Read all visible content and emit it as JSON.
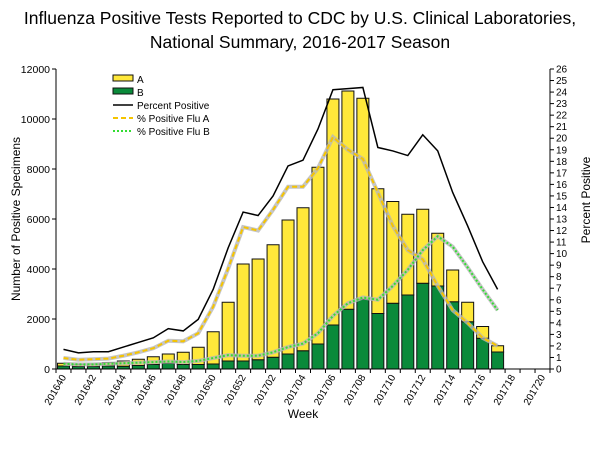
{
  "chart_data": {
    "type": "bar",
    "title_line1": "Influenza Positive Tests Reported to CDC by U.S. Clinical Laboratories,",
    "title_line2": "National Summary, 2016-2017 Season",
    "xlabel": "Week",
    "ylabel": "Number of Positive Specimens",
    "y2label": "Percent Positive",
    "ylim": [
      0,
      12000
    ],
    "y2lim": [
      0,
      26
    ],
    "yticks": [
      0,
      2000,
      4000,
      6000,
      8000,
      10000,
      12000
    ],
    "y2ticks": [
      0,
      1,
      2,
      3,
      4,
      5,
      6,
      7,
      8,
      9,
      10,
      11,
      12,
      13,
      14,
      15,
      16,
      17,
      18,
      19,
      20,
      21,
      22,
      23,
      24,
      25,
      26
    ],
    "grid": false,
    "legend_position": "top-left",
    "categories": [
      "201640",
      "201641",
      "201642",
      "201643",
      "201644",
      "201645",
      "201646",
      "201647",
      "201648",
      "201649",
      "201650",
      "201651",
      "201652",
      "201701",
      "201702",
      "201703",
      "201704",
      "201705",
      "201706",
      "201707",
      "201708",
      "201709",
      "201710",
      "201711",
      "201712",
      "201713",
      "201714",
      "201715",
      "201716",
      "201717",
      "201718",
      "201719",
      "201720"
    ],
    "tick_labels": [
      "201640",
      "201642",
      "201644",
      "201646",
      "201648",
      "201650",
      "201652",
      "201702",
      "201704",
      "201706",
      "201708",
      "201710",
      "201712",
      "201714",
      "201716",
      "201718",
      "201720"
    ],
    "bar_series": [
      {
        "name": "A",
        "stack": "top",
        "color": "#FFE83A",
        "values": [
          110,
          90,
          100,
          140,
          210,
          250,
          310,
          370,
          490,
          690,
          1290,
          2350,
          3880,
          4030,
          4500,
          5360,
          5720,
          7070,
          9040,
          8730,
          8040,
          4990,
          4070,
          3230,
          2960,
          2110,
          1270,
          780,
          470,
          250,
          null,
          null,
          null
        ]
      },
      {
        "name": "B",
        "stack": "bottom",
        "color": "#0A8A3A",
        "values": [
          120,
          100,
          100,
          120,
          110,
          140,
          180,
          230,
          180,
          180,
          200,
          320,
          320,
          370,
          470,
          600,
          730,
          1000,
          1760,
          2390,
          2790,
          2220,
          2630,
          2960,
          3430,
          3320,
          2690,
          1890,
          1230,
          680,
          null,
          null,
          null
        ]
      }
    ],
    "line_series": [
      {
        "name": "Percent Positive",
        "color": "#000000",
        "style": "solid",
        "values": [
          1.7,
          1.4,
          1.5,
          1.5,
          1.9,
          2.3,
          2.7,
          3.5,
          3.3,
          4.3,
          6.9,
          10.5,
          13.6,
          13.3,
          15.0,
          17.6,
          18.1,
          20.8,
          24.2,
          24.3,
          24.4,
          19.2,
          18.9,
          18.5,
          20.3,
          18.9,
          15.3,
          12.4,
          9.3,
          6.9,
          null,
          null,
          null
        ]
      },
      {
        "name": "% Positive Flu A",
        "color": "#F5C400",
        "style": "dashed",
        "values": [
          0.95,
          0.8,
          0.85,
          0.9,
          1.15,
          1.45,
          1.8,
          2.45,
          2.4,
          3.1,
          5.4,
          8.7,
          12.3,
          12.0,
          13.8,
          15.8,
          15.8,
          17.4,
          20.1,
          19.0,
          18.2,
          15.3,
          12.4,
          10.3,
          9.5,
          7.2,
          5.1,
          4.0,
          2.7,
          2.0,
          null,
          null,
          null
        ]
      },
      {
        "name": "% Positive Flu B",
        "color": "#33DD33",
        "style": "dotted",
        "values": [
          0.45,
          0.4,
          0.4,
          0.45,
          0.5,
          0.55,
          0.6,
          0.65,
          0.6,
          0.7,
          0.95,
          1.2,
          1.15,
          1.15,
          1.45,
          1.9,
          2.2,
          3.1,
          4.6,
          5.7,
          6.2,
          6.0,
          7.2,
          8.6,
          10.3,
          11.5,
          10.6,
          8.8,
          6.9,
          5.1,
          null,
          null,
          null
        ]
      }
    ]
  }
}
